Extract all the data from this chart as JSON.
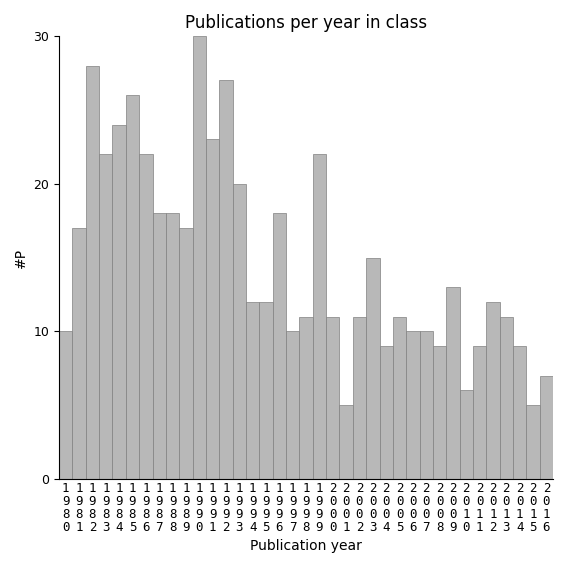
{
  "title": "Publications per year in class",
  "xlabel": "Publication year",
  "ylabel": "#P",
  "years": [
    1980,
    1981,
    1982,
    1983,
    1984,
    1985,
    1986,
    1987,
    1988,
    1989,
    1990,
    1991,
    1992,
    1993,
    1994,
    1995,
    1996,
    1997,
    1998,
    1999,
    2000,
    2001,
    2002,
    2003,
    2004,
    2005,
    2006,
    2007,
    2008,
    2009,
    2010,
    2011,
    2012,
    2013,
    2014,
    2015,
    2016
  ],
  "values": [
    10,
    17,
    28,
    22,
    24,
    26,
    22,
    18,
    18,
    17,
    30,
    23,
    27,
    20,
    12,
    12,
    18,
    10,
    11,
    22,
    11,
    5,
    11,
    15,
    9,
    11,
    10,
    10,
    9,
    13,
    6,
    9,
    12,
    11,
    9,
    5,
    7
  ],
  "bar_color": "#b8b8b8",
  "bar_edge_color": "#808080",
  "ylim": [
    0,
    30
  ],
  "yticks": [
    0,
    10,
    20,
    30
  ],
  "background_color": "#ffffff",
  "title_fontsize": 12,
  "axis_label_fontsize": 10,
  "tick_fontsize": 9
}
